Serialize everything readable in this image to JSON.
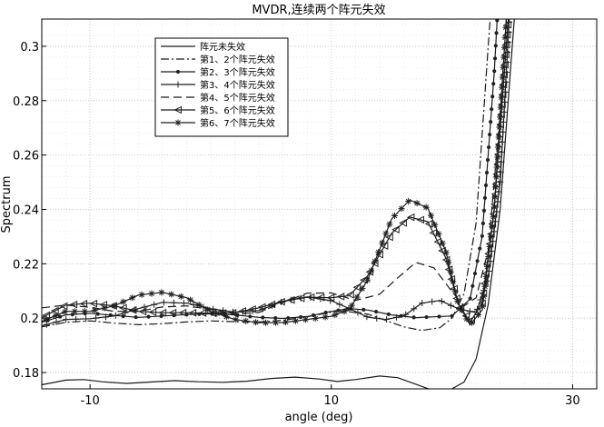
{
  "chart_data": {
    "type": "line",
    "title": "MVDR,连续两个阵元失效",
    "xlabel": "angle (deg)",
    "ylabel": "Spectrum",
    "xlim": [
      -14,
      32
    ],
    "ylim": [
      0.174,
      0.31
    ],
    "xticks": [
      -10,
      10,
      30
    ],
    "xtick_labels": [
      "-10",
      "10",
      "30"
    ],
    "yticks": [
      0.18,
      0.2,
      0.22,
      0.24,
      0.26,
      0.28,
      0.3
    ],
    "ytick_labels": [
      "0.18",
      "0.2",
      "0.22",
      "0.24",
      "0.26",
      "0.28",
      "0.3"
    ],
    "grid": true,
    "legend_position": "top-left",
    "series": [
      {
        "name": "阵元未失效",
        "dash": "",
        "marker": "none",
        "points": [
          [
            -14,
            0.1755
          ],
          [
            -12,
            0.1772
          ],
          [
            -10.5,
            0.1774
          ],
          [
            -9,
            0.1766
          ],
          [
            -7,
            0.176
          ],
          [
            -5,
            0.1765
          ],
          [
            -3,
            0.177
          ],
          [
            -1,
            0.1766
          ],
          [
            1,
            0.1764
          ],
          [
            3,
            0.1768
          ],
          [
            5,
            0.1778
          ],
          [
            7,
            0.1783
          ],
          [
            9,
            0.1776
          ],
          [
            10.5,
            0.1767
          ],
          [
            12,
            0.1774
          ],
          [
            14,
            0.1787
          ],
          [
            15.5,
            0.1781
          ],
          [
            17,
            0.1757
          ],
          [
            18.5,
            0.1733
          ],
          [
            20,
            0.174
          ],
          [
            21,
            0.1765
          ],
          [
            22,
            0.185
          ],
          [
            23,
            0.205
          ],
          [
            24,
            0.24
          ],
          [
            25,
            0.3
          ],
          [
            25.5,
            0.33
          ]
        ]
      },
      {
        "name": "第1、2个阵元失效",
        "dash": "9,3,2,3",
        "marker": "none",
        "points": [
          [
            -14,
            0.1968
          ],
          [
            -12,
            0.1985
          ],
          [
            -10,
            0.199
          ],
          [
            -8,
            0.1982
          ],
          [
            -6,
            0.1976
          ],
          [
            -4,
            0.198
          ],
          [
            -2,
            0.1986
          ],
          [
            0,
            0.199
          ],
          [
            2,
            0.1987
          ],
          [
            4,
            0.1986
          ],
          [
            6,
            0.1992
          ],
          [
            8,
            0.2005
          ],
          [
            10,
            0.2022
          ],
          [
            11,
            0.2026
          ],
          [
            13,
            0.2015
          ],
          [
            14.5,
            0.1992
          ],
          [
            16,
            0.1968
          ],
          [
            17.5,
            0.1955
          ],
          [
            19,
            0.1965
          ],
          [
            20,
            0.2
          ],
          [
            21,
            0.209
          ],
          [
            22,
            0.235
          ],
          [
            23,
            0.3
          ],
          [
            23.5,
            0.33
          ]
        ]
      },
      {
        "name": "第2、3个阵元失效",
        "dash": "",
        "marker": "dot",
        "points": [
          [
            -14,
            0.1985
          ],
          [
            -12,
            0.2012
          ],
          [
            -10,
            0.2018
          ],
          [
            -8,
            0.201
          ],
          [
            -6,
            0.2003
          ],
          [
            -4,
            0.2008
          ],
          [
            -2,
            0.2013
          ],
          [
            0,
            0.2016
          ],
          [
            2,
            0.2012
          ],
          [
            4,
            0.2003
          ],
          [
            6,
            0.1999
          ],
          [
            8,
            0.2006
          ],
          [
            10,
            0.2025
          ],
          [
            11.5,
            0.2035
          ],
          [
            13,
            0.203
          ],
          [
            15,
            0.2012
          ],
          [
            17,
            0.2002
          ],
          [
            18.5,
            0.2005
          ],
          [
            20,
            0.2008
          ],
          [
            21.5,
            0.207
          ],
          [
            22.5,
            0.23
          ],
          [
            23.5,
            0.29
          ],
          [
            24,
            0.33
          ]
        ]
      },
      {
        "name": "第3、4个阵元失效",
        "dash": "",
        "marker": "plus",
        "points": [
          [
            -14,
            0.1972
          ],
          [
            -12,
            0.1995
          ],
          [
            -10,
            0.1998
          ],
          [
            -8,
            0.2008
          ],
          [
            -6,
            0.2035
          ],
          [
            -4,
            0.2058
          ],
          [
            -2,
            0.2055
          ],
          [
            0,
            0.2035
          ],
          [
            2,
            0.2022
          ],
          [
            4,
            0.2028
          ],
          [
            6,
            0.2062
          ],
          [
            8,
            0.2078
          ],
          [
            10,
            0.2064
          ],
          [
            11.5,
            0.2035
          ],
          [
            13,
            0.2004
          ],
          [
            14.5,
            0.1995
          ],
          [
            16,
            0.2008
          ],
          [
            17.5,
            0.2055
          ],
          [
            19,
            0.2065
          ],
          [
            20.5,
            0.2035
          ],
          [
            22,
            0.202
          ],
          [
            23,
            0.215
          ],
          [
            24,
            0.25
          ],
          [
            25,
            0.33
          ]
        ]
      },
      {
        "name": "第4、5个阵元失效",
        "dash": "9,5",
        "marker": "none",
        "points": [
          [
            -14,
            0.2038
          ],
          [
            -12,
            0.2048
          ],
          [
            -10,
            0.204
          ],
          [
            -8,
            0.2025
          ],
          [
            -6,
            0.2025
          ],
          [
            -4,
            0.2041
          ],
          [
            -2,
            0.2045
          ],
          [
            0,
            0.2032
          ],
          [
            2,
            0.2015
          ],
          [
            4,
            0.2021
          ],
          [
            6,
            0.2058
          ],
          [
            8,
            0.2092
          ],
          [
            10,
            0.2093
          ],
          [
            12,
            0.2065
          ],
          [
            14,
            0.2088
          ],
          [
            15.5,
            0.2148
          ],
          [
            17,
            0.2205
          ],
          [
            18.5,
            0.2185
          ],
          [
            20,
            0.2098
          ],
          [
            21,
            0.2045
          ],
          [
            22,
            0.2075
          ],
          [
            23,
            0.225
          ],
          [
            24,
            0.275
          ],
          [
            24.8,
            0.33
          ]
        ]
      },
      {
        "name": "第5、6个阵元失效",
        "dash": "",
        "marker": "triangle",
        "points": [
          [
            -14,
            0.2002
          ],
          [
            -12,
            0.2048
          ],
          [
            -10,
            0.2055
          ],
          [
            -8,
            0.2045
          ],
          [
            -6,
            0.2025
          ],
          [
            -4,
            0.202
          ],
          [
            -2,
            0.202
          ],
          [
            0,
            0.2018
          ],
          [
            2,
            0.202
          ],
          [
            4,
            0.2038
          ],
          [
            6,
            0.2062
          ],
          [
            8,
            0.2077
          ],
          [
            10,
            0.2075
          ],
          [
            11.5,
            0.2083
          ],
          [
            13,
            0.2155
          ],
          [
            15,
            0.2312
          ],
          [
            16.5,
            0.2372
          ],
          [
            18,
            0.2355
          ],
          [
            19.5,
            0.222
          ],
          [
            20.5,
            0.2055
          ],
          [
            21.5,
            0.1985
          ],
          [
            22.5,
            0.2055
          ],
          [
            23.5,
            0.24
          ],
          [
            24.5,
            0.3
          ],
          [
            25,
            0.33
          ]
        ]
      },
      {
        "name": "第6、7个阵元失效",
        "dash": "",
        "marker": "star",
        "points": [
          [
            -14,
            0.1988
          ],
          [
            -12,
            0.2025
          ],
          [
            -10,
            0.2025
          ],
          [
            -8,
            0.2045
          ],
          [
            -6,
            0.2085
          ],
          [
            -4,
            0.2095
          ],
          [
            -2,
            0.2075
          ],
          [
            0,
            0.2025
          ],
          [
            2,
            0.1995
          ],
          [
            4,
            0.1983
          ],
          [
            6,
            0.1984
          ],
          [
            8,
            0.1995
          ],
          [
            10,
            0.2007
          ],
          [
            11.5,
            0.2032
          ],
          [
            13,
            0.214
          ],
          [
            15,
            0.2365
          ],
          [
            16.5,
            0.2435
          ],
          [
            18,
            0.2405
          ],
          [
            19.5,
            0.2245
          ],
          [
            20.5,
            0.2055
          ],
          [
            21.5,
            0.1975
          ],
          [
            22.5,
            0.203
          ],
          [
            23.5,
            0.24
          ],
          [
            24.5,
            0.31
          ],
          [
            25,
            0.34
          ]
        ]
      }
    ]
  }
}
